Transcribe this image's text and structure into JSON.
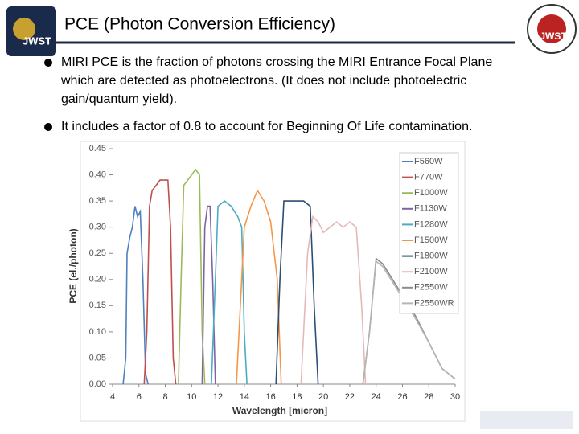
{
  "slide": {
    "title": "PCE (Photon Conversion Efficiency)",
    "bullets": [
      "MIRI PCE is the fraction of photons crossing the MIRI Entrance Focal Plane",
      "which are detected as photoelectrons.  (It does not include photoelectric",
      "gain/quantum yield).",
      "It includes a factor of 0.8 to account for Beginning Of Life contamination."
    ],
    "logo_left": "JWST",
    "logo_right": "JWST"
  },
  "chart_data": {
    "type": "line",
    "xlabel": "Wavelength [micron]",
    "ylabel": "PCE (el./photon)",
    "xlim": [
      4,
      30
    ],
    "xticks": [
      4,
      6,
      8,
      10,
      12,
      14,
      16,
      18,
      20,
      22,
      24,
      26,
      28,
      30
    ],
    "ylim": [
      0,
      0.45
    ],
    "yticks": [
      {
        "value": 0,
        "label": "0.00"
      },
      {
        "value": 0.05,
        "label": "0.05"
      },
      {
        "value": 0.1,
        "label": "0.10"
      },
      {
        "value": 0.15,
        "label": "0.15"
      },
      {
        "value": 0.2,
        "label": "0.20"
      },
      {
        "value": 0.25,
        "label": "0.25"
      },
      {
        "value": 0.3,
        "label": "0.30"
      },
      {
        "value": 0.35,
        "label": "0.35"
      },
      {
        "value": 0.4,
        "label": "0.40"
      },
      {
        "value": 0.45,
        "label": "0.45"
      }
    ],
    "legend": "upper right",
    "series": [
      {
        "name": "F560W",
        "color": "#4f81bd",
        "x": [
          4.8,
          5.0,
          5.1,
          5.3,
          5.5,
          5.7,
          5.9,
          6.1,
          6.3,
          6.5,
          6.7
        ],
        "values": [
          0,
          0.05,
          0.25,
          0.28,
          0.3,
          0.34,
          0.32,
          0.33,
          0.2,
          0.02,
          0
        ]
      },
      {
        "name": "F770W",
        "color": "#c0504d",
        "x": [
          6.4,
          6.6,
          6.8,
          7.0,
          7.3,
          7.6,
          7.9,
          8.2,
          8.4,
          8.6,
          8.8
        ],
        "values": [
          0,
          0.1,
          0.34,
          0.37,
          0.38,
          0.39,
          0.39,
          0.39,
          0.3,
          0.05,
          0
        ]
      },
      {
        "name": "F1000W",
        "color": "#9bbb59",
        "x": [
          9.0,
          9.2,
          9.4,
          9.7,
          10.0,
          10.3,
          10.6,
          10.8,
          11.0
        ],
        "values": [
          0,
          0.2,
          0.38,
          0.39,
          0.4,
          0.41,
          0.4,
          0.1,
          0
        ]
      },
      {
        "name": "F1130W",
        "color": "#8064a2",
        "x": [
          10.8,
          11.0,
          11.2,
          11.4,
          11.6,
          11.8
        ],
        "values": [
          0,
          0.3,
          0.34,
          0.34,
          0.2,
          0
        ]
      },
      {
        "name": "F1280W",
        "color": "#4bacc6",
        "x": [
          11.5,
          11.8,
          12.0,
          12.5,
          13.0,
          13.5,
          13.8,
          14.0,
          14.2
        ],
        "values": [
          0,
          0.2,
          0.34,
          0.35,
          0.34,
          0.32,
          0.3,
          0.1,
          0
        ]
      },
      {
        "name": "F1500W",
        "color": "#f79646",
        "x": [
          13.4,
          13.7,
          14.0,
          14.5,
          15.0,
          15.5,
          16.0,
          16.5,
          16.8
        ],
        "values": [
          0,
          0.15,
          0.3,
          0.34,
          0.37,
          0.35,
          0.31,
          0.2,
          0
        ]
      },
      {
        "name": "F1800W",
        "color": "#2c4d75",
        "x": [
          16.4,
          16.7,
          17.0,
          17.5,
          18.0,
          18.5,
          19.0,
          19.3,
          19.6
        ],
        "values": [
          0,
          0.2,
          0.35,
          0.35,
          0.35,
          0.35,
          0.34,
          0.15,
          0
        ]
      },
      {
        "name": "F2100W",
        "color": "#e6b9b8",
        "x": [
          18.3,
          18.8,
          19.2,
          19.6,
          20.0,
          20.5,
          21.0,
          21.5,
          22.0,
          22.5,
          22.9,
          23.2
        ],
        "values": [
          0,
          0.25,
          0.32,
          0.31,
          0.29,
          0.3,
          0.31,
          0.3,
          0.31,
          0.3,
          0.15,
          0
        ]
      },
      {
        "name": "F2550W",
        "color": "#8c8c8c",
        "x": [
          23.0,
          23.5,
          24.0,
          24.5,
          25.0,
          26.0,
          27.0,
          28.0,
          29.0,
          30.0
        ],
        "values": [
          0,
          0.1,
          0.24,
          0.23,
          0.21,
          0.17,
          0.13,
          0.08,
          0.03,
          0.01
        ]
      },
      {
        "name": "F2550WR",
        "color": "#b5b5b5",
        "x": [
          23.0,
          23.5,
          24.0,
          24.5,
          25.0,
          26.0,
          27.0,
          28.0,
          29.0,
          30.0
        ],
        "values": [
          0,
          0.1,
          0.235,
          0.225,
          0.205,
          0.165,
          0.125,
          0.08,
          0.03,
          0.01
        ]
      }
    ]
  }
}
